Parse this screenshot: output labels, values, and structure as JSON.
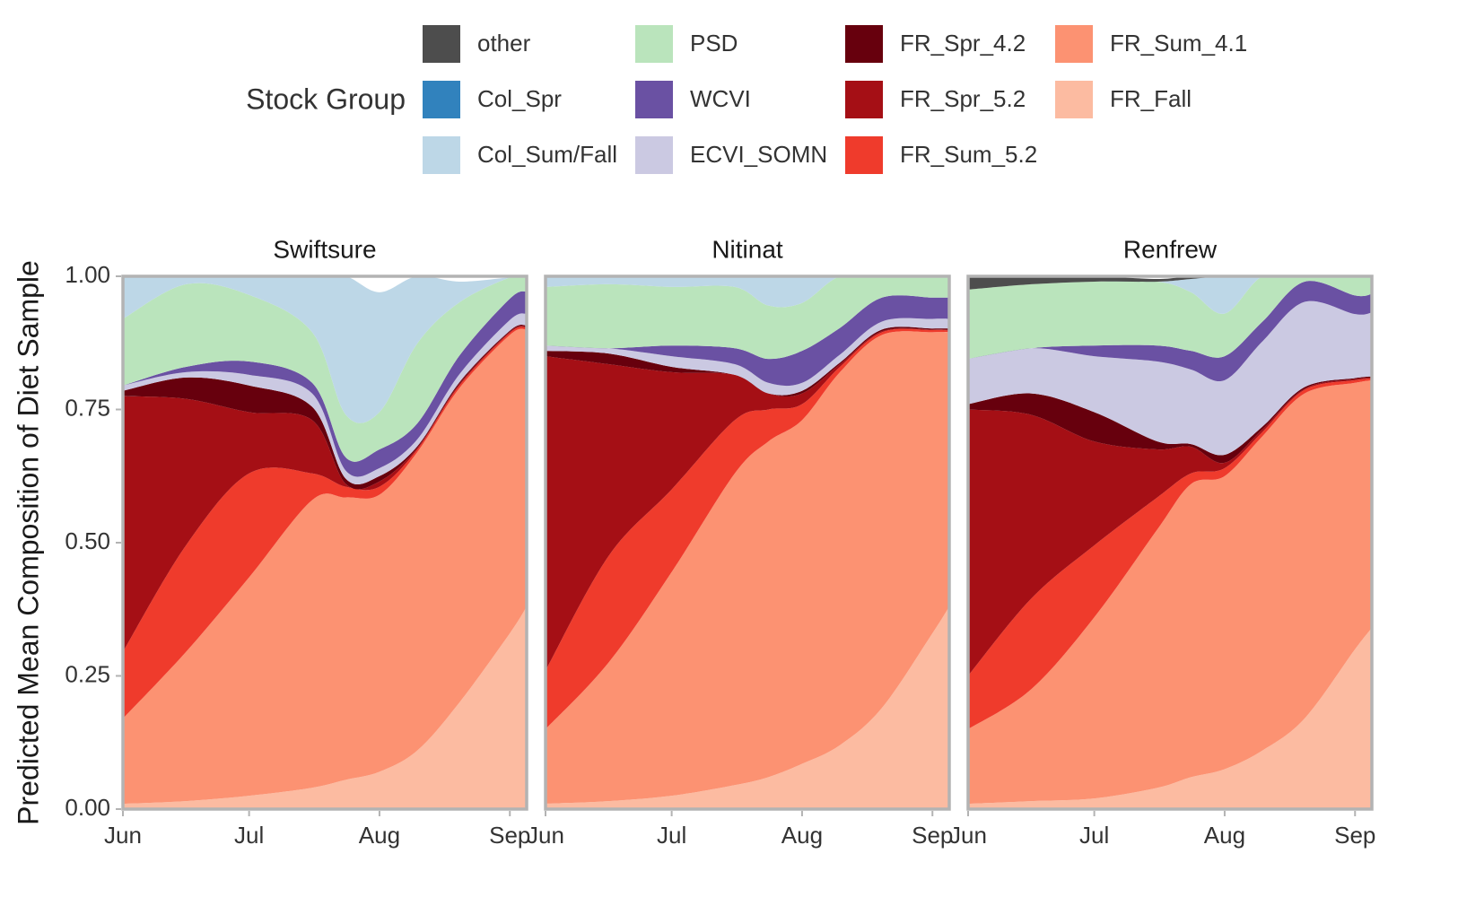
{
  "chart_data": {
    "type": "area",
    "stacked": "proportion",
    "ylabel": "Predicted Mean Composition of Diet Sample",
    "ylim": [
      0,
      1
    ],
    "yticks": [
      "0.00",
      "0.25",
      "0.50",
      "0.75",
      "1.00"
    ],
    "xlim_days": [
      0,
      96
    ],
    "xticks": [
      {
        "label": "Jun",
        "day": 0
      },
      {
        "label": "Jul",
        "day": 30
      },
      {
        "label": "Aug",
        "day": 61
      },
      {
        "label": "Sep",
        "day": 92
      }
    ],
    "legend": {
      "title": "Stock Group",
      "position": "top",
      "items": [
        {
          "name": "other",
          "color": "#4d4d4d"
        },
        {
          "name": "Col_Spr",
          "color": "#3182bd"
        },
        {
          "name": "Col_Sum/Fall",
          "color": "#bdd7e7"
        },
        {
          "name": "PSD",
          "color": "#bae4bc"
        },
        {
          "name": "WCVI",
          "color": "#6a51a3"
        },
        {
          "name": "ECVI_SOMN",
          "color": "#cbc9e2"
        },
        {
          "name": "FR_Spr_4.2",
          "color": "#67000d"
        },
        {
          "name": "FR_Spr_5.2",
          "color": "#a50f15"
        },
        {
          "name": "FR_Sum_5.2",
          "color": "#ef3b2c"
        },
        {
          "name": "FR_Sum_4.1",
          "color": "#fc9272"
        },
        {
          "name": "FR_Fall",
          "color": "#fcbba1"
        }
      ]
    },
    "stack_order_bottom_to_top": [
      "FR_Fall",
      "FR_Sum_4.1",
      "FR_Sum_5.2",
      "FR_Spr_5.2",
      "FR_Spr_4.2",
      "ECVI_SOMN",
      "WCVI",
      "PSD",
      "Col_Sum/Fall",
      "Col_Spr",
      "other"
    ],
    "x_days": [
      0,
      15,
      30,
      45,
      53,
      61,
      70,
      80,
      92,
      96
    ],
    "panels": [
      {
        "name": "Swiftsure",
        "series": {
          "FR_Fall": [
            0.01,
            0.015,
            0.025,
            0.04,
            0.055,
            0.07,
            0.11,
            0.2,
            0.33,
            0.38
          ],
          "FR_Sum_4.1": [
            0.16,
            0.28,
            0.41,
            0.54,
            0.53,
            0.52,
            0.56,
            0.59,
            0.56,
            0.52
          ],
          "FR_Sum_5.2": [
            0.125,
            0.2,
            0.195,
            0.05,
            0.02,
            0.015,
            0.005,
            0.005,
            0.004,
            0.004
          ],
          "FR_Spr_5.2": [
            0.48,
            0.275,
            0.115,
            0.1,
            0.005,
            0.01,
            0.003,
            0.003,
            0.002,
            0.002
          ],
          "FR_Spr_4.2": [
            0.01,
            0.04,
            0.05,
            0.025,
            0.01,
            0.01,
            0.003,
            0.003,
            0.002,
            0.002
          ],
          "ECVI_SOMN": [
            0.01,
            0.01,
            0.02,
            0.025,
            0.015,
            0.015,
            0.013,
            0.015,
            0.02,
            0.022
          ],
          "WCVI": [
            0.0,
            0.01,
            0.025,
            0.02,
            0.025,
            0.035,
            0.03,
            0.035,
            0.04,
            0.042
          ],
          "PSD": [
            0.125,
            0.155,
            0.125,
            0.095,
            0.08,
            0.07,
            0.15,
            0.1,
            0.04,
            0.028
          ],
          "Col_Sum/Fall": [
            0.08,
            0.04,
            0.035,
            0.105,
            0.26,
            0.225,
            0.126,
            0.039,
            0.0,
            0.0
          ],
          "Col_Spr": [
            0,
            0,
            0,
            0,
            0,
            0,
            0,
            0,
            0,
            0
          ],
          "other": [
            0,
            0,
            0,
            0,
            0,
            0,
            0,
            0,
            0,
            0
          ]
        }
      },
      {
        "name": "Nitinat",
        "series": {
          "FR_Fall": [
            0.01,
            0.015,
            0.025,
            0.045,
            0.06,
            0.085,
            0.12,
            0.19,
            0.33,
            0.38
          ],
          "FR_Sum_4.1": [
            0.14,
            0.26,
            0.42,
            0.585,
            0.63,
            0.645,
            0.7,
            0.7,
            0.565,
            0.515
          ],
          "FR_Sum_5.2": [
            0.11,
            0.2,
            0.155,
            0.1,
            0.06,
            0.03,
            0.01,
            0.005,
            0.004,
            0.003
          ],
          "FR_Spr_5.2": [
            0.59,
            0.36,
            0.22,
            0.085,
            0.03,
            0.02,
            0.005,
            0.002,
            0.001,
            0.002
          ],
          "FR_Spr_4.2": [
            0.01,
            0.02,
            0.01,
            0.0,
            0.0,
            0.005,
            0.003,
            0.003,
            0.002,
            0.002
          ],
          "ECVI_SOMN": [
            0.01,
            0.01,
            0.02,
            0.02,
            0.02,
            0.015,
            0.015,
            0.015,
            0.018,
            0.018
          ],
          "WCVI": [
            0.0,
            0.0,
            0.02,
            0.03,
            0.045,
            0.06,
            0.05,
            0.045,
            0.04,
            0.04
          ],
          "PSD": [
            0.11,
            0.12,
            0.11,
            0.115,
            0.1,
            0.09,
            0.097,
            0.04,
            0.04,
            0.04
          ],
          "Col_Sum/Fall": [
            0.02,
            0.015,
            0.02,
            0.02,
            0.055,
            0.05,
            0.0,
            0.0,
            0.0,
            0.0
          ],
          "Col_Spr": [
            0,
            0,
            0,
            0,
            0,
            0,
            0,
            0,
            0,
            0
          ],
          "other": [
            0,
            0,
            0,
            0,
            0,
            0,
            0,
            0,
            0,
            0
          ]
        }
      },
      {
        "name": "Renfrew",
        "series": {
          "FR_Fall": [
            0.01,
            0.015,
            0.02,
            0.04,
            0.06,
            0.075,
            0.11,
            0.17,
            0.3,
            0.34
          ],
          "FR_Sum_4.1": [
            0.14,
            0.21,
            0.34,
            0.485,
            0.55,
            0.55,
            0.59,
            0.61,
            0.5,
            0.465
          ],
          "FR_Sum_5.2": [
            0.1,
            0.17,
            0.135,
            0.06,
            0.02,
            0.015,
            0.008,
            0.007,
            0.005,
            0.003
          ],
          "FR_Spr_5.2": [
            0.5,
            0.345,
            0.195,
            0.09,
            0.05,
            0.01,
            0.005,
            0.002,
            0.002,
            0.002
          ],
          "FR_Spr_4.2": [
            0.01,
            0.04,
            0.055,
            0.015,
            0.005,
            0.015,
            0.005,
            0.003,
            0.002,
            0.002
          ],
          "ECVI_SOMN": [
            0.085,
            0.085,
            0.105,
            0.15,
            0.14,
            0.14,
            0.16,
            0.16,
            0.12,
            0.12
          ],
          "WCVI": [
            0.0,
            0.0,
            0.02,
            0.03,
            0.035,
            0.045,
            0.037,
            0.038,
            0.035,
            0.035
          ],
          "PSD": [
            0.13,
            0.12,
            0.12,
            0.12,
            0.11,
            0.08,
            0.085,
            0.01,
            0.036,
            0.033
          ],
          "Col_Sum/Fall": [
            0.0,
            0.0,
            0.0,
            0.0,
            0.025,
            0.07,
            0.0,
            0.0,
            0.0,
            0.0
          ],
          "Col_Spr": [
            0,
            0,
            0,
            0,
            0,
            0,
            0,
            0,
            0,
            0
          ],
          "other": [
            0.025,
            0.015,
            0.01,
            0.005,
            0.005,
            0.0,
            0.0,
            0.0,
            0.0,
            0.0
          ]
        }
      }
    ]
  }
}
